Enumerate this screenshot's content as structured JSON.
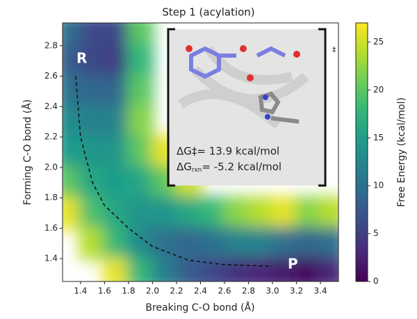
{
  "chart_data": {
    "type": "contour",
    "title": "Step 1 (acylation)",
    "x_label": "Breaking C-O bond (Å)",
    "y_label": "Forming C-O bond (Å)",
    "xlim": [
      1.25,
      3.55
    ],
    "ylim": [
      1.25,
      2.95
    ],
    "xticks": [
      1.4,
      1.6,
      1.8,
      {
        "value": 2,
        "label": "2.0"
      },
      2.2,
      2.4,
      2.6,
      2.8,
      {
        "value": 3,
        "label": "3.0"
      },
      3.2,
      3.4
    ],
    "yticks": [
      1.4,
      1.6,
      1.8,
      {
        "value": 2,
        "label": "2.0"
      },
      2.2,
      2.4,
      2.6,
      2.8
    ],
    "grid_x": [
      1.3,
      1.5,
      1.7,
      1.9,
      2.1,
      2.3,
      2.5,
      2.7,
      2.9,
      3.1,
      3.3,
      3.5
    ],
    "grid_y": [
      2.9,
      2.7,
      2.5,
      2.3,
      2.1,
      1.9,
      1.7,
      1.5,
      1.3
    ],
    "z": [
      [
        10,
        6,
        6,
        20,
        null,
        null,
        null,
        null,
        null,
        null,
        null,
        null
      ],
      [
        8,
        6,
        5,
        18,
        null,
        null,
        null,
        null,
        null,
        null,
        null,
        null
      ],
      [
        10,
        9,
        9,
        20,
        null,
        null,
        null,
        null,
        null,
        null,
        null,
        null
      ],
      [
        13,
        12,
        12,
        22,
        null,
        null,
        null,
        null,
        null,
        null,
        null,
        null
      ],
      [
        15,
        14,
        14,
        20,
        26,
        null,
        null,
        null,
        null,
        null,
        null,
        null
      ],
      [
        20,
        16,
        15,
        16,
        20,
        25,
        null,
        null,
        null,
        null,
        null,
        null
      ],
      [
        26,
        19,
        16,
        14,
        14,
        16,
        18,
        22,
        24,
        26,
        22,
        24
      ],
      [
        null,
        24,
        18,
        13,
        10,
        9,
        10,
        12,
        12,
        10,
        9,
        10
      ],
      [
        null,
        null,
        26,
        18,
        12,
        8,
        6,
        4,
        3,
        2,
        1,
        3
      ]
    ],
    "colormap": [
      "#440154",
      "#482878",
      "#3e4989",
      "#31688e",
      "#26828e",
      "#1f9e89",
      "#35b779",
      "#6ece58",
      "#b5de2b",
      "#fde725"
    ],
    "clim": [
      0,
      27
    ],
    "colorbar_label": "Free Energy (kcal/mol)",
    "colorbar_ticks": [
      0,
      5,
      10,
      15,
      20,
      25
    ],
    "path": {
      "x": [
        1.36,
        1.4,
        1.5,
        1.6,
        1.8,
        2.0,
        2.3,
        2.6,
        3.0
      ],
      "y": [
        2.6,
        2.2,
        1.9,
        1.75,
        1.6,
        1.48,
        1.39,
        1.36,
        1.35
      ]
    },
    "path_color": "#111111",
    "labels": {
      "reactant": "R",
      "product": "P",
      "ts_mark": "‡"
    },
    "dg_act": "ΔG‡= 13.9 kcal/mol",
    "dg_rxn": {
      "symbol": "ΔG",
      "sub": "rxn",
      "text": "= -5.2 kcal/mol"
    }
  }
}
